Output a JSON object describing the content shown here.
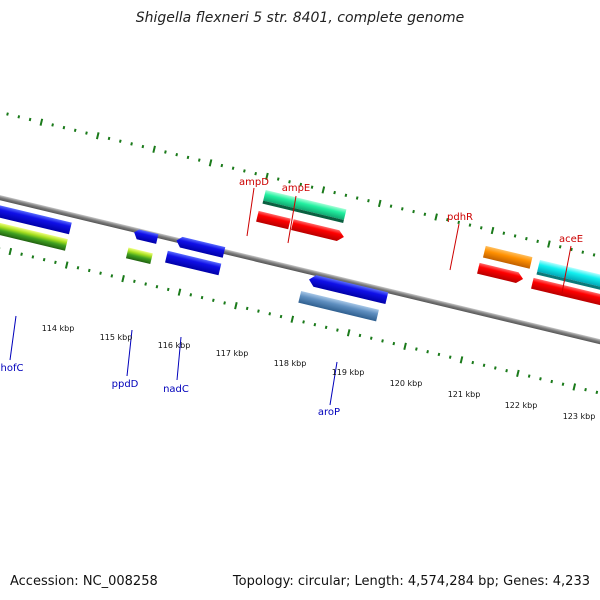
{
  "title": "Shigella flexneri 5 str. 8401, complete genome",
  "footer": {
    "accession": "Accession: NC_008258",
    "summary": "Topology: circular; Length: 4,574,284 bp; Genes: 4,233"
  },
  "colors": {
    "backbone": "#888888",
    "tick": "#1a7a1a",
    "label_top": "#cc0000",
    "label_bottom": "#0000bb"
  },
  "scale": {
    "tick_labels": [
      "114 kbp",
      "115 kbp",
      "116 kbp",
      "117 kbp",
      "118 kbp",
      "119 kbp",
      "120 kbp",
      "121 kbp",
      "122 kbp",
      "123 kbp"
    ]
  },
  "genes": {
    "top": [
      "ampD",
      "ampE",
      "pdhR",
      "aceE"
    ],
    "bottom": [
      "hofC",
      "ppdD",
      "nadC",
      "aroP"
    ]
  }
}
